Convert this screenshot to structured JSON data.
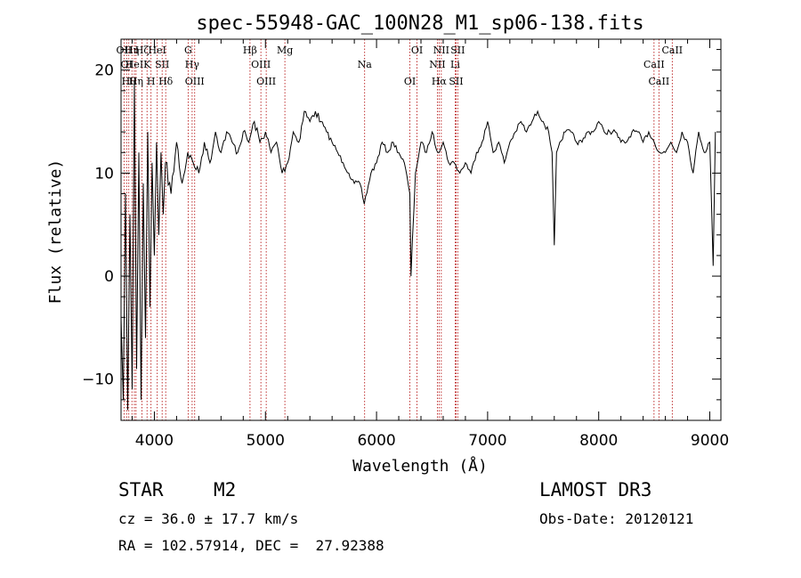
{
  "chart_data": {
    "type": "line",
    "title": "spec-55948-GAC_100N28_M1_sp06-138.fits",
    "xlabel": "Wavelength (Å)",
    "ylabel": "Flux (relative)",
    "xlim": [
      3700,
      9100
    ],
    "ylim": [
      -14,
      23
    ],
    "x_ticks": [
      4000,
      5000,
      6000,
      7000,
      8000,
      9000
    ],
    "y_ticks": [
      -10,
      0,
      10,
      20
    ],
    "grid": false,
    "series": [
      {
        "x": [
          3700,
          3720,
          3740,
          3760,
          3780,
          3800,
          3820,
          3840,
          3860,
          3880,
          3900,
          3920,
          3940,
          3960,
          3980,
          4000,
          4020,
          4040,
          4060,
          4080,
          4100,
          4150,
          4200,
          4250,
          4300,
          4350,
          4400,
          4450,
          4500,
          4550,
          4600,
          4650,
          4700,
          4750,
          4800,
          4850,
          4900,
          4950,
          5000,
          5050,
          5100,
          5150,
          5200,
          5250,
          5300,
          5350,
          5400,
          5450,
          5500,
          5550,
          5600,
          5650,
          5700,
          5750,
          5800,
          5850,
          5890,
          5950,
          6000,
          6050,
          6100,
          6150,
          6200,
          6250,
          6300,
          6310,
          6350,
          6400,
          6450,
          6500,
          6550,
          6600,
          6650,
          6700,
          6750,
          6800,
          6850,
          6900,
          6950,
          7000,
          7050,
          7100,
          7150,
          7200,
          7250,
          7300,
          7350,
          7400,
          7450,
          7500,
          7550,
          7580,
          7600,
          7620,
          7650,
          7700,
          7750,
          7800,
          7850,
          7900,
          7950,
          8000,
          8050,
          8100,
          8150,
          8200,
          8250,
          8300,
          8350,
          8400,
          8450,
          8500,
          8550,
          8600,
          8650,
          8700,
          8750,
          8800,
          8850,
          8900,
          8950,
          9000,
          9030,
          9050
        ],
        "y": [
          -4,
          -12,
          8,
          -13,
          6,
          -11,
          19,
          -9,
          12,
          -12,
          9,
          -6,
          14,
          -3,
          11,
          2,
          13,
          4,
          12,
          6,
          11,
          8,
          13,
          9,
          12,
          11,
          10,
          13,
          11,
          14,
          12,
          14,
          13,
          12,
          14,
          13,
          15,
          13,
          14,
          12,
          13,
          10,
          11,
          14,
          13,
          16,
          15,
          16,
          15,
          14,
          13,
          12,
          11,
          10,
          9,
          9,
          7,
          10,
          11,
          13,
          12,
          13,
          12,
          11,
          8,
          0,
          10,
          13,
          12,
          14,
          12,
          13,
          11,
          11,
          10,
          11,
          10,
          12,
          13,
          15,
          12,
          13,
          11,
          13,
          14,
          15,
          14,
          15,
          16,
          15,
          14,
          12,
          3,
          12,
          13,
          14,
          14,
          13,
          13,
          14,
          14,
          15,
          14,
          14,
          14,
          13,
          13,
          14,
          14,
          13,
          14,
          13,
          12,
          12,
          13,
          12,
          14,
          13,
          10,
          14,
          12,
          13,
          1,
          14
        ]
      }
    ],
    "line_markers": [
      {
        "wl": 3727,
        "label": "OII"
      },
      {
        "wl": 3750,
        "label": "OI"
      },
      {
        "wl": 3770,
        "label": "Hθ"
      },
      {
        "wl": 3798,
        "label": "Hη"
      },
      {
        "wl": 3820,
        "label": "HeI"
      },
      {
        "wl": 3835,
        "label": "Hη"
      },
      {
        "wl": 3889,
        "label": "Hζ"
      },
      {
        "wl": 3934,
        "label": "K"
      },
      {
        "wl": 3970,
        "label": "H"
      },
      {
        "wl": 4026,
        "label": "HeI"
      },
      {
        "wl": 4070,
        "label": "SII"
      },
      {
        "wl": 4102,
        "label": "Hδ"
      },
      {
        "wl": 4304,
        "label": "G"
      },
      {
        "wl": 4340,
        "label": "Hγ"
      },
      {
        "wl": 4363,
        "label": "OIII"
      },
      {
        "wl": 4861,
        "label": "Hβ"
      },
      {
        "wl": 4959,
        "label": "OIII"
      },
      {
        "wl": 5007,
        "label": "OIII"
      },
      {
        "wl": 5175,
        "label": "Mg"
      },
      {
        "wl": 5893,
        "label": "Na"
      },
      {
        "wl": 6300,
        "label": "OI"
      },
      {
        "wl": 6364,
        "label": "OI"
      },
      {
        "wl": 6548,
        "label": "NII"
      },
      {
        "wl": 6563,
        "label": "Hα"
      },
      {
        "wl": 6583,
        "label": "NII"
      },
      {
        "wl": 6708,
        "label": "Li"
      },
      {
        "wl": 6716,
        "label": "SII"
      },
      {
        "wl": 6731,
        "label": "SII"
      },
      {
        "wl": 8498,
        "label": "CaII"
      },
      {
        "wl": 8542,
        "label": "CaII"
      },
      {
        "wl": 8662,
        "label": "CaII"
      }
    ]
  },
  "info": {
    "object_class": "STAR",
    "subclass": "M2",
    "survey": "LAMOST DR3",
    "redshift": "cz = 36.0 ± 17.7 km/s",
    "obs_date": "Obs-Date: 20120121",
    "coords": "RA = 102.57914, DEC =  27.92388"
  }
}
